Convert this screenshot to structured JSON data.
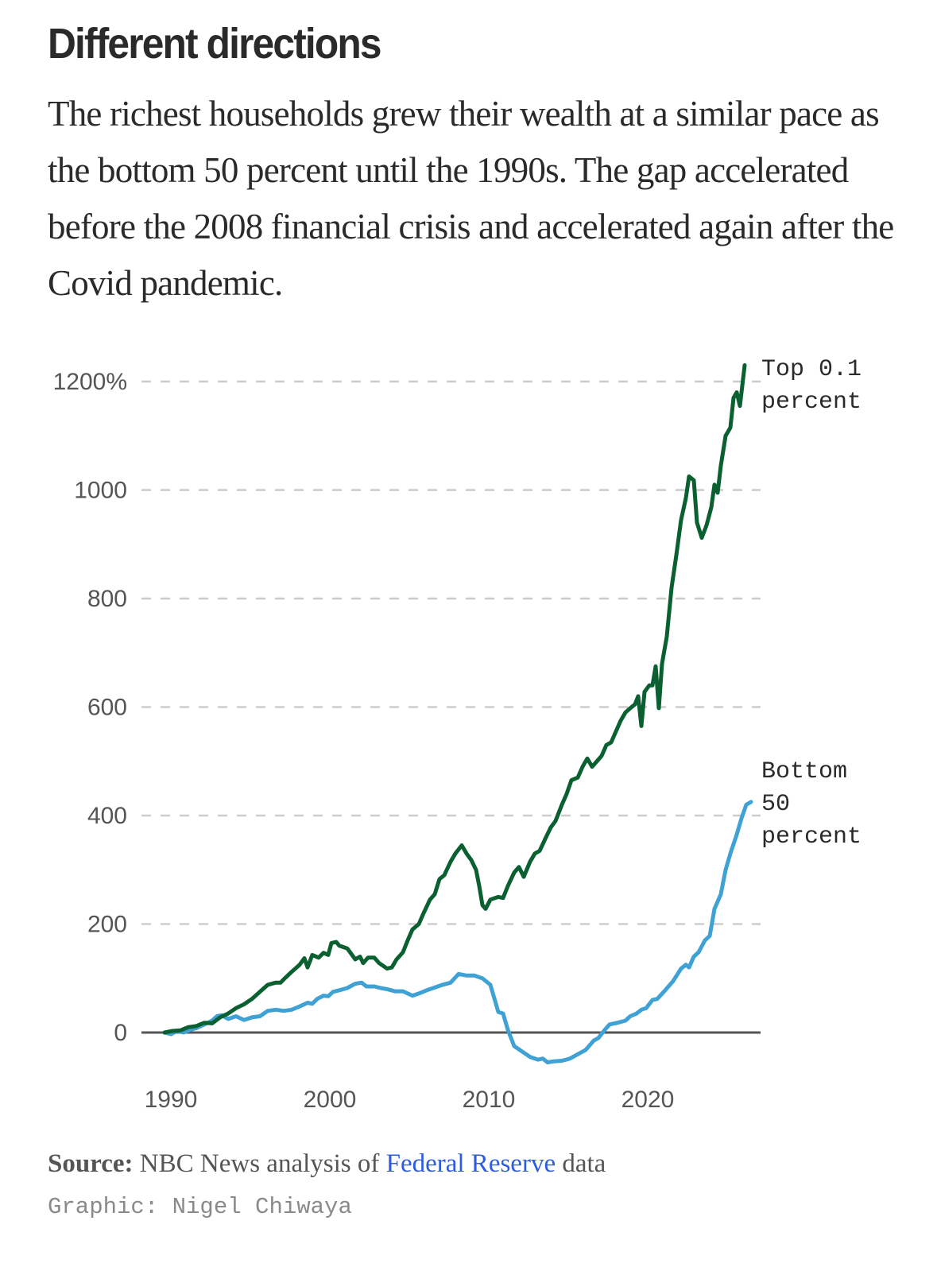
{
  "header": {
    "title": "Different directions",
    "subtitle": "The richest households grew their wealth at a similar pace as the bottom 50 percent until the 1990s. The gap accelerated before the 2008 financial crisis and accelerated again after the Covid pandemic."
  },
  "footer": {
    "source_label": "Source:",
    "source_text_before": " NBC News analysis of ",
    "source_link": "Federal Reserve",
    "source_text_after": " data",
    "credit": "Graphic: Nigel Chiwaya"
  },
  "chart_data": {
    "type": "line",
    "title": "Different directions",
    "xlabel": "",
    "ylabel": "",
    "xlim": [
      1990,
      2026
    ],
    "ylim": [
      -70,
      1230
    ],
    "grid": true,
    "legend": "direct-labels-right",
    "y_ticks": [
      {
        "value": 0,
        "label": "0"
      },
      {
        "value": 200,
        "label": "200"
      },
      {
        "value": 400,
        "label": "400"
      },
      {
        "value": 600,
        "label": "600"
      },
      {
        "value": 800,
        "label": "800"
      },
      {
        "value": 1000,
        "label": "1000"
      },
      {
        "value": 1200,
        "label": "1200%"
      }
    ],
    "x_ticks": [
      {
        "value": 1990,
        "label": "1990"
      },
      {
        "value": 2000,
        "label": "2000"
      },
      {
        "value": 2010,
        "label": "2010"
      },
      {
        "value": 2020,
        "label": "2020"
      }
    ],
    "series": [
      {
        "name": "Top 0.1 percent",
        "label_lines": [
          "Top 0.1",
          "percent"
        ],
        "color": "#0a6030",
        "points": [
          [
            1990.0,
            0
          ],
          [
            1990.5,
            3
          ],
          [
            1991.0,
            4
          ],
          [
            1991.5,
            10
          ],
          [
            1992.0,
            12
          ],
          [
            1992.5,
            18
          ],
          [
            1993.0,
            17
          ],
          [
            1993.5,
            28
          ],
          [
            1994.0,
            35
          ],
          [
            1994.5,
            45
          ],
          [
            1995.0,
            52
          ],
          [
            1995.5,
            62
          ],
          [
            1996.0,
            75
          ],
          [
            1996.5,
            88
          ],
          [
            1997.0,
            92
          ],
          [
            1997.3,
            92
          ],
          [
            1997.5,
            98
          ],
          [
            1998.0,
            112
          ],
          [
            1998.5,
            125
          ],
          [
            1998.8,
            137
          ],
          [
            1999.0,
            120
          ],
          [
            1999.3,
            143
          ],
          [
            1999.7,
            138
          ],
          [
            2000.0,
            147
          ],
          [
            2000.3,
            143
          ],
          [
            2000.5,
            165
          ],
          [
            2000.8,
            167
          ],
          [
            2001.0,
            160
          ],
          [
            2001.5,
            155
          ],
          [
            2002.0,
            135
          ],
          [
            2002.3,
            140
          ],
          [
            2002.5,
            128
          ],
          [
            2002.8,
            138
          ],
          [
            2003.2,
            138
          ],
          [
            2003.5,
            128
          ],
          [
            2004.0,
            118
          ],
          [
            2004.3,
            120
          ],
          [
            2004.6,
            135
          ],
          [
            2005.0,
            148
          ],
          [
            2005.3,
            170
          ],
          [
            2005.6,
            190
          ],
          [
            2006.0,
            200
          ],
          [
            2006.3,
            220
          ],
          [
            2006.7,
            245
          ],
          [
            2007.0,
            255
          ],
          [
            2007.3,
            283
          ],
          [
            2007.6,
            290
          ],
          [
            2008.0,
            315
          ],
          [
            2008.3,
            330
          ],
          [
            2008.7,
            345
          ],
          [
            2009.0,
            330
          ],
          [
            2009.3,
            318
          ],
          [
            2009.6,
            300
          ],
          [
            2009.8,
            270
          ],
          [
            2010.0,
            235
          ],
          [
            2010.2,
            228
          ],
          [
            2010.5,
            245
          ],
          [
            2010.8,
            248
          ],
          [
            2011.0,
            250
          ],
          [
            2011.3,
            248
          ],
          [
            2011.6,
            270
          ],
          [
            2012.0,
            295
          ],
          [
            2012.3,
            305
          ],
          [
            2012.6,
            287
          ],
          [
            2013.0,
            315
          ],
          [
            2013.3,
            330
          ],
          [
            2013.6,
            335
          ],
          [
            2014.0,
            360
          ],
          [
            2014.3,
            378
          ],
          [
            2014.6,
            390
          ],
          [
            2015.0,
            420
          ],
          [
            2015.3,
            440
          ],
          [
            2015.6,
            465
          ],
          [
            2016.0,
            470
          ],
          [
            2016.3,
            490
          ],
          [
            2016.6,
            505
          ],
          [
            2016.9,
            490
          ],
          [
            2017.2,
            500
          ],
          [
            2017.5,
            510
          ],
          [
            2017.8,
            530
          ],
          [
            2018.1,
            535
          ],
          [
            2018.4,
            555
          ],
          [
            2018.7,
            575
          ],
          [
            2019.0,
            590
          ],
          [
            2019.3,
            598
          ],
          [
            2019.6,
            605
          ],
          [
            2019.8,
            620
          ],
          [
            2020.0,
            565
          ],
          [
            2020.2,
            628
          ],
          [
            2020.5,
            640
          ],
          [
            2020.7,
            640
          ],
          [
            2020.9,
            675
          ],
          [
            2021.1,
            598
          ],
          [
            2021.3,
            680
          ],
          [
            2021.6,
            730
          ],
          [
            2021.9,
            820
          ],
          [
            2022.2,
            880
          ],
          [
            2022.5,
            945
          ],
          [
            2022.8,
            985
          ],
          [
            2023.0,
            1025
          ],
          [
            2023.3,
            1018
          ],
          [
            2023.5,
            940
          ],
          [
            2023.8,
            912
          ],
          [
            2024.1,
            935
          ],
          [
            2024.4,
            968
          ],
          [
            2024.6,
            1010
          ],
          [
            2024.8,
            995
          ],
          [
            2025.0,
            1045
          ],
          [
            2025.3,
            1100
          ],
          [
            2025.6,
            1115
          ],
          [
            2025.8,
            1170
          ],
          [
            2026.0,
            1180
          ],
          [
            2026.2,
            1155
          ],
          [
            2026.5,
            1230
          ]
        ]
      },
      {
        "name": "Bottom 50 percent",
        "label_lines": [
          "Bottom",
          "50",
          "percent"
        ],
        "color": "#3fa1d4",
        "points": [
          [
            1990.0,
            0
          ],
          [
            1990.4,
            -3
          ],
          [
            1990.8,
            3
          ],
          [
            1991.2,
            0
          ],
          [
            1991.6,
            5
          ],
          [
            1992.0,
            8
          ],
          [
            1992.5,
            15
          ],
          [
            1993.0,
            22
          ],
          [
            1993.3,
            30
          ],
          [
            1993.6,
            32
          ],
          [
            1994.0,
            25
          ],
          [
            1994.5,
            30
          ],
          [
            1995.0,
            23
          ],
          [
            1995.5,
            28
          ],
          [
            1996.0,
            30
          ],
          [
            1996.5,
            40
          ],
          [
            1997.0,
            42
          ],
          [
            1997.5,
            40
          ],
          [
            1998.0,
            42
          ],
          [
            1998.5,
            48
          ],
          [
            1999.0,
            55
          ],
          [
            1999.3,
            53
          ],
          [
            1999.6,
            62
          ],
          [
            2000.0,
            68
          ],
          [
            2000.3,
            67
          ],
          [
            2000.6,
            75
          ],
          [
            2001.0,
            78
          ],
          [
            2001.5,
            82
          ],
          [
            2002.0,
            90
          ],
          [
            2002.4,
            92
          ],
          [
            2002.7,
            85
          ],
          [
            2003.2,
            85
          ],
          [
            2003.6,
            82
          ],
          [
            2004.0,
            80
          ],
          [
            2004.5,
            76
          ],
          [
            2005.0,
            76
          ],
          [
            2005.6,
            68
          ],
          [
            2006.0,
            72
          ],
          [
            2006.5,
            78
          ],
          [
            2007.0,
            83
          ],
          [
            2007.5,
            88
          ],
          [
            2008.0,
            92
          ],
          [
            2008.5,
            108
          ],
          [
            2009.0,
            105
          ],
          [
            2009.5,
            105
          ],
          [
            2010.0,
            100
          ],
          [
            2010.5,
            88
          ],
          [
            2011.0,
            38
          ],
          [
            2011.3,
            35
          ],
          [
            2011.6,
            5
          ],
          [
            2012.0,
            -25
          ],
          [
            2012.5,
            -35
          ],
          [
            2013.0,
            -45
          ],
          [
            2013.5,
            -50
          ],
          [
            2013.8,
            -48
          ],
          [
            2014.1,
            -55
          ],
          [
            2014.5,
            -53
          ],
          [
            2015.0,
            -52
          ],
          [
            2015.5,
            -48
          ],
          [
            2016.0,
            -40
          ],
          [
            2016.5,
            -32
          ],
          [
            2017.0,
            -15
          ],
          [
            2017.3,
            -10
          ],
          [
            2017.7,
            5
          ],
          [
            2018.0,
            15
          ],
          [
            2018.5,
            18
          ],
          [
            2019.0,
            22
          ],
          [
            2019.3,
            30
          ],
          [
            2019.7,
            35
          ],
          [
            2020.0,
            42
          ],
          [
            2020.3,
            45
          ],
          [
            2020.7,
            60
          ],
          [
            2021.0,
            62
          ],
          [
            2021.5,
            78
          ],
          [
            2022.0,
            95
          ],
          [
            2022.5,
            118
          ],
          [
            2022.8,
            125
          ],
          [
            2023.0,
            120
          ],
          [
            2023.3,
            140
          ],
          [
            2023.6,
            148
          ],
          [
            2024.0,
            170
          ],
          [
            2024.3,
            178
          ],
          [
            2024.6,
            228
          ],
          [
            2025.0,
            255
          ],
          [
            2025.3,
            300
          ],
          [
            2025.6,
            330
          ],
          [
            2026.0,
            365
          ],
          [
            2026.3,
            395
          ],
          [
            2026.6,
            420
          ],
          [
            2026.9,
            425
          ]
        ]
      }
    ]
  }
}
